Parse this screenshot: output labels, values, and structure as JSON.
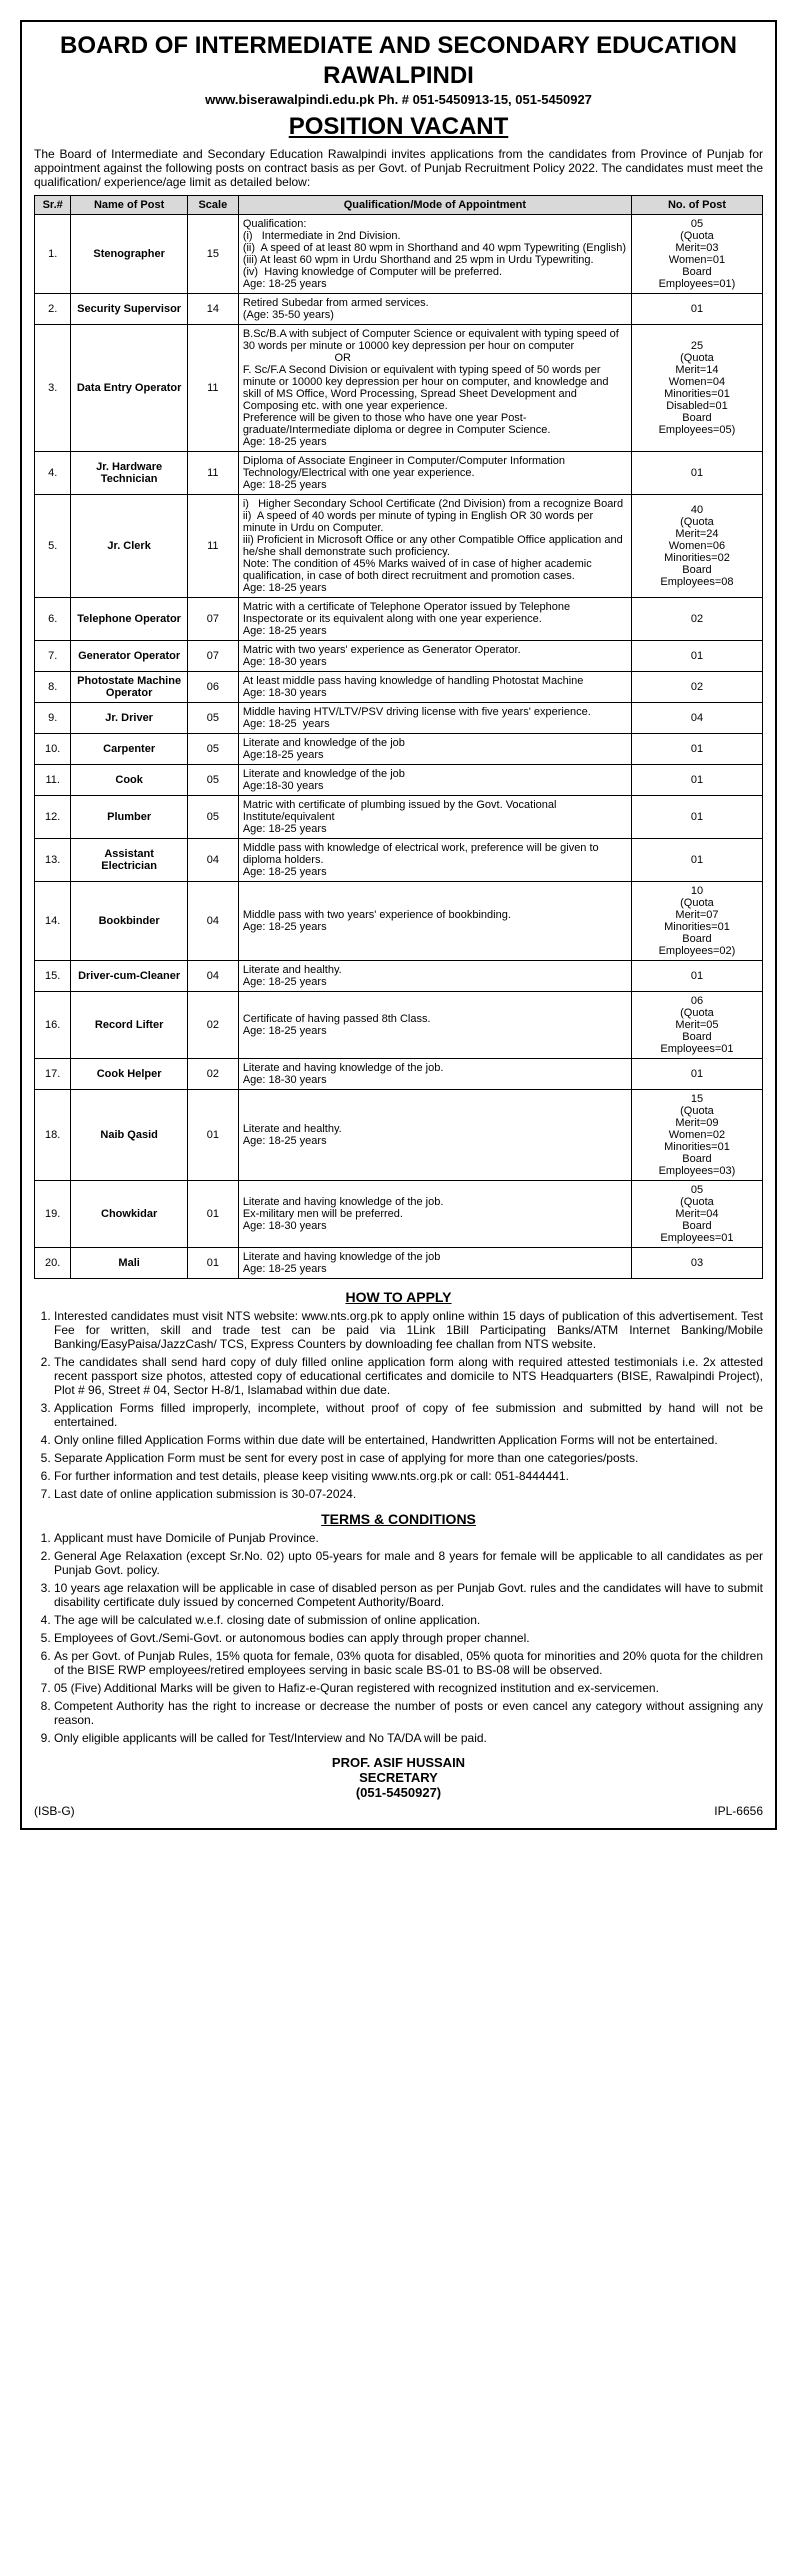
{
  "header": {
    "org_line1": "BOARD OF INTERMEDIATE AND SECONDARY EDUCATION",
    "org_line2": "RAWALPINDI",
    "contact": "www.biserawalpindi.edu.pk  Ph. # 051-5450913-15, 051-5450927",
    "title": "POSITION VACANT",
    "intro": "The Board of Intermediate and Secondary Education Rawalpindi invites applications from the candidates from Province of Punjab for appointment against the following posts on contract basis as per Govt. of Punjab Recruitment Policy 2022. The candidates must meet the qualification/ experience/age limit as detailed below:"
  },
  "table": {
    "columns": [
      "Sr.#",
      "Name of Post",
      "Scale",
      "Qualification/Mode of Appointment",
      "No. of Post"
    ],
    "rows": [
      {
        "sr": "1.",
        "name": "Stenographer",
        "scale": "15",
        "qual": "Qualification:\n(i)   Intermediate in 2nd Division.\n(ii)  A speed of at least 80 wpm in Shorthand and 40 wpm Typewriting (English)\n(iii) At least 60 wpm in Urdu Shorthand and 25 wpm in Urdu Typewriting.\n(iv)  Having knowledge of Computer will be preferred.\nAge: 18-25 years",
        "num": "05\n(Quota\nMerit=03\nWomen=01\nBoard\nEmployees=01)"
      },
      {
        "sr": "2.",
        "name": "Security Supervisor",
        "scale": "14",
        "qual": "Retired Subedar from armed services.\n(Age: 35-50 years)",
        "num": "01"
      },
      {
        "sr": "3.",
        "name": "Data Entry Operator",
        "scale": "11",
        "qual": "B.Sc/B.A with subject of Computer Science or equivalent with typing speed of 30 words per minute or 10000 key depression per hour on computer\n                              OR\nF. Sc/F.A Second Division or equivalent with typing speed of 50 words per minute or 10000 key depression per hour on computer, and knowledge and skill of MS Office, Word Processing, Spread Sheet Development and Composing etc. with one year experience.\nPreference will be given to those who have one year Post-graduate/Intermediate diploma or degree in Computer Science.\nAge: 18-25 years",
        "num": "25\n(Quota\nMerit=14\nWomen=04\nMinorities=01\nDisabled=01\nBoard\nEmployees=05)"
      },
      {
        "sr": "4.",
        "name": "Jr. Hardware Technician",
        "scale": "11",
        "qual": "Diploma of Associate Engineer in Computer/Computer Information Technology/Electrical with one year experience.\nAge: 18-25 years",
        "num": "01"
      },
      {
        "sr": "5.",
        "name": "Jr. Clerk",
        "scale": "11",
        "qual": "i)   Higher Secondary School Certificate (2nd Division) from a recognize Board\nii)  A speed of 40 words per minute of typing in English OR 30 words per minute in Urdu on Computer.\niii) Proficient in Microsoft Office or any other Compatible Office application and he/she shall demonstrate such proficiency.\nNote: The condition of 45% Marks waived of in case of higher academic qualification, in case of both direct recruitment and promotion cases.\nAge: 18-25 years",
        "num": "40\n(Quota\nMerit=24\nWomen=06\nMinorities=02\nBoard\nEmployees=08"
      },
      {
        "sr": "6.",
        "name": "Telephone Operator",
        "scale": "07",
        "qual": "Matric with a certificate of Telephone Operator issued by Telephone Inspectorate or its equivalent along with one year experience.\nAge: 18-25 years",
        "num": "02"
      },
      {
        "sr": "7.",
        "name": "Generator Operator",
        "scale": "07",
        "qual": "Matric with two years' experience as Generator Operator.\nAge: 18-30 years",
        "num": "01"
      },
      {
        "sr": "8.",
        "name": "Photostate Machine Operator",
        "scale": "06",
        "qual": "At least middle pass having knowledge of handling Photostat Machine\nAge: 18-30 years",
        "num": "02"
      },
      {
        "sr": "9.",
        "name": "Jr. Driver",
        "scale": "05",
        "qual": "Middle having HTV/LTV/PSV driving license with five years' experience.\nAge: 18-25  years",
        "num": "04"
      },
      {
        "sr": "10.",
        "name": "Carpenter",
        "scale": "05",
        "qual": "Literate and knowledge of the job\nAge:18-25 years",
        "num": "01"
      },
      {
        "sr": "11.",
        "name": "Cook",
        "scale": "05",
        "qual": "Literate and knowledge of the job\nAge:18-30 years",
        "num": "01"
      },
      {
        "sr": "12.",
        "name": "Plumber",
        "scale": "05",
        "qual": "Matric with certificate of plumbing issued by the Govt. Vocational Institute/equivalent\nAge: 18-25 years",
        "num": "01"
      },
      {
        "sr": "13.",
        "name": "Assistant Electrician",
        "scale": "04",
        "qual": "Middle pass with knowledge of electrical work, preference will be given to diploma holders.\nAge: 18-25 years",
        "num": "01"
      },
      {
        "sr": "14.",
        "name": "Bookbinder",
        "scale": "04",
        "qual": "Middle pass with two years' experience of bookbinding.\nAge: 18-25 years",
        "num": "10\n(Quota\nMerit=07\nMinorities=01\nBoard\nEmployees=02)"
      },
      {
        "sr": "15.",
        "name": "Driver-cum-Cleaner",
        "scale": "04",
        "qual": "Literate and healthy.\nAge: 18-25 years",
        "num": "01"
      },
      {
        "sr": "16.",
        "name": "Record Lifter",
        "scale": "02",
        "qual": "Certificate of having passed 8th Class.\nAge: 18-25 years",
        "num": "06\n(Quota\nMerit=05\nBoard\nEmployees=01"
      },
      {
        "sr": "17.",
        "name": "Cook Helper",
        "scale": "02",
        "qual": "Literate and having knowledge of the job.\nAge: 18-30 years",
        "num": "01"
      },
      {
        "sr": "18.",
        "name": "Naib Qasid",
        "scale": "01",
        "qual": "Literate and healthy.\nAge: 18-25 years",
        "num": "15\n(Quota\nMerit=09\nWomen=02\nMinorities=01\nBoard\nEmployees=03)"
      },
      {
        "sr": "19.",
        "name": "Chowkidar",
        "scale": "01",
        "qual": "Literate and having knowledge of the job.\nEx-military men will be preferred.\nAge: 18-30 years",
        "num": "05\n(Quota\nMerit=04\nBoard\nEmployees=01"
      },
      {
        "sr": "20.",
        "name": "Mali",
        "scale": "01",
        "qual": "Literate and having knowledge of the job\nAge: 18-25 years",
        "num": "03"
      }
    ]
  },
  "how_to_apply": {
    "heading": "HOW TO APPLY",
    "items": [
      "Interested candidates must visit NTS website: www.nts.org.pk to apply online within 15 days of publication of this advertisement. Test Fee for written, skill and trade test can be paid via 1Link 1Bill Participating Banks/ATM Internet Banking/Mobile Banking/EasyPaisa/JazzCash/ TCS, Express Counters by downloading fee challan from NTS website.",
      "The candidates shall send hard copy of duly filled online application form along with required attested testimonials i.e. 2x attested recent passport size photos, attested copy of educational certificates and domicile to NTS Headquarters (BISE, Rawalpindi Project), Plot # 96, Street # 04, Sector H-8/1, Islamabad within due date.",
      "Application Forms filled improperly, incomplete, without proof of copy of fee submission and submitted by hand will not be entertained.",
      "Only online filled Application Forms within due date will be entertained, Handwritten Application Forms will not be entertained.",
      "Separate Application Form must be sent for every post in case of applying for more than one categories/posts.",
      "For further information and test details, please keep visiting www.nts.org.pk or call: 051-8444441.",
      "Last date of online application submission is 30-07-2024."
    ]
  },
  "terms": {
    "heading": "TERMS & CONDITIONS",
    "items": [
      "Applicant must have Domicile of Punjab Province.",
      "General Age Relaxation (except Sr.No. 02) upto 05-years for male and 8 years for female will be applicable to all candidates as per Punjab Govt. policy.",
      "10 years age relaxation will be applicable in case of disabled person as per Punjab Govt. rules and the candidates will have to submit disability certificate duly issued by concerned Competent Authority/Board.",
      "The age will be calculated w.e.f. closing date of submission of online application.",
      "Employees of Govt./Semi-Govt. or autonomous bodies can apply through proper channel.",
      "As per Govt. of Punjab Rules, 15% quota for female, 03% quota for disabled, 05% quota for minorities and 20% quota for the children of the BISE RWP employees/retired employees serving in basic scale BS-01 to BS-08 will be observed.",
      "05 (Five) Additional Marks will be given to Hafiz-e-Quran registered with recognized institution and ex-servicemen.",
      "Competent Authority has the right to increase or decrease the number of posts or even cancel any category without assigning any reason.",
      "Only eligible applicants will be called for Test/Interview and No TA/DA will be paid."
    ]
  },
  "signature": {
    "name": "PROF. ASIF HUSSAIN",
    "title": "SECRETARY",
    "phone": "(051-5450927)"
  },
  "footer": {
    "left": "(ISB-G)",
    "right": "IPL-6656"
  }
}
